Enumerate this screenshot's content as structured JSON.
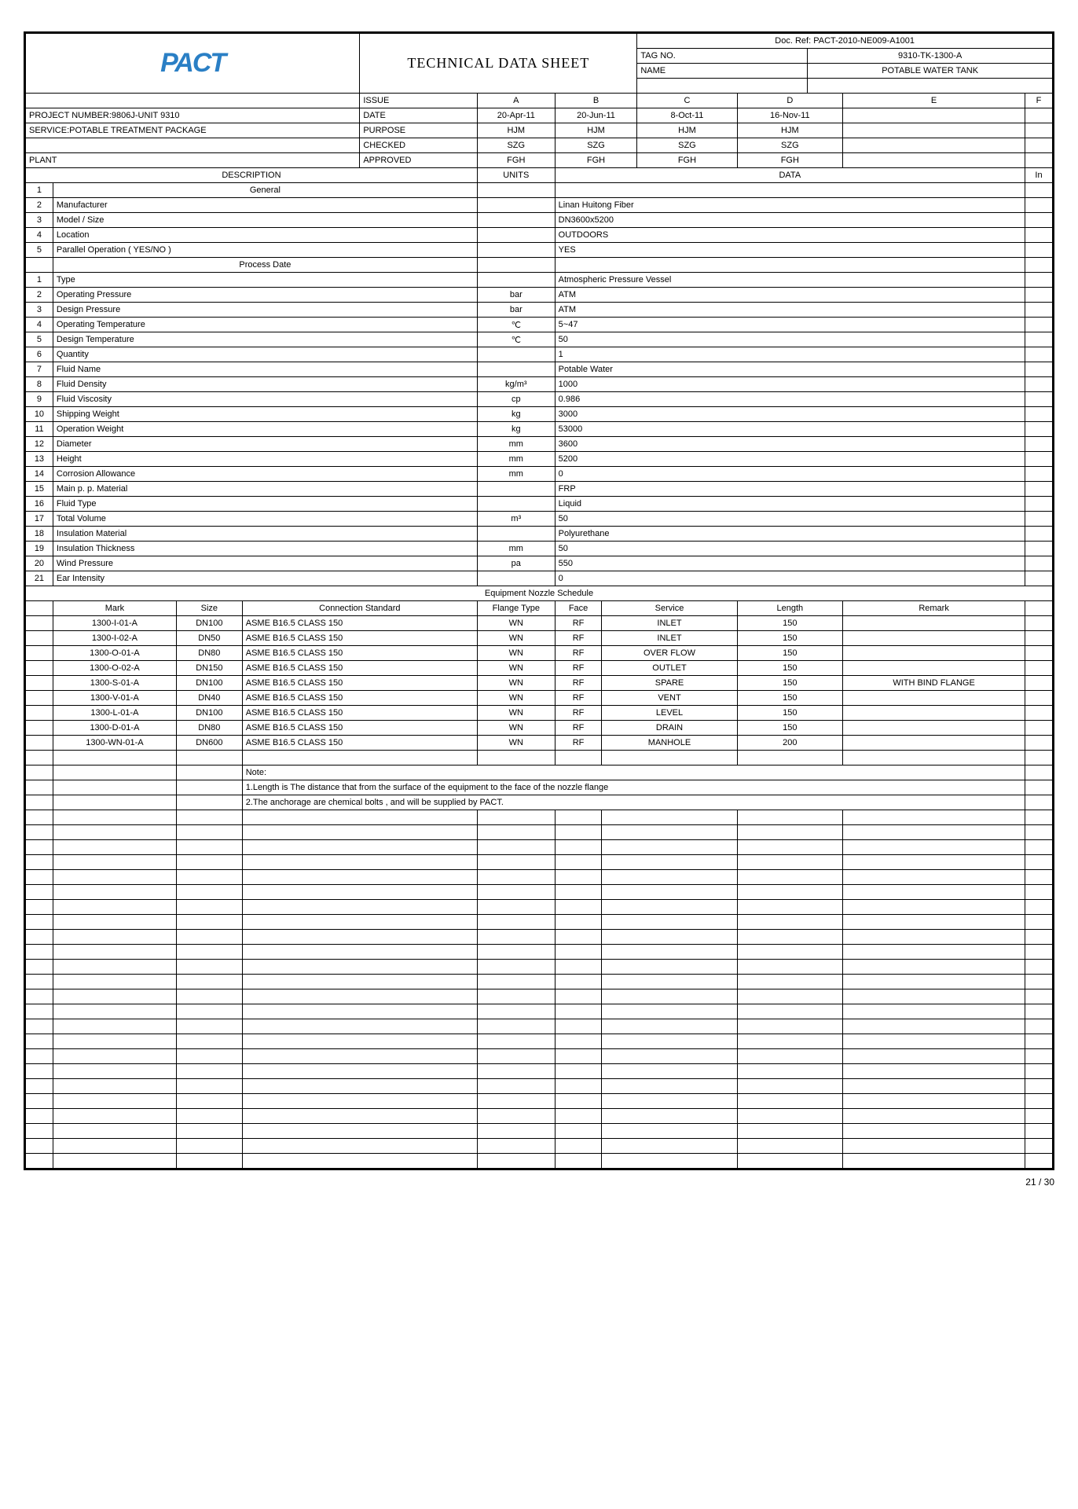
{
  "header": {
    "title": "TECHNICAL DATA SHEET",
    "docref_label": "Doc. Ref:",
    "docref": "PACT-2010-NE009-A1001",
    "tagno_label": "TAG NO.",
    "tagno": "9310-TK-1300-A",
    "name_label": "NAME",
    "name": "POTABLE WATER TANK",
    "project": "PROJECT NUMBER:9806J-UNIT 9310",
    "service": "SERVICE:POTABLE TREATMENT PACKAGE",
    "plant": "PLANT",
    "rev": {
      "issue": "ISSUE",
      "date": "DATE",
      "purpose": "PURPOSE",
      "checked": "CHECKED",
      "approved": "APPROVED",
      "cols": [
        "A",
        "B",
        "C",
        "D",
        "E",
        "F"
      ],
      "dates": [
        "20-Apr-11",
        "20-Jun-11",
        "8-Oct-11",
        "16-Nov-11",
        "",
        ""
      ],
      "purposes": [
        "HJM",
        "HJM",
        "HJM",
        "HJM",
        "",
        ""
      ],
      "checkeds": [
        "SZG",
        "SZG",
        "SZG",
        "SZG",
        "",
        ""
      ],
      "approveds": [
        "FGH",
        "FGH",
        "FGH",
        "FGH",
        "",
        ""
      ]
    },
    "desc_hdr": "DESCRIPTION",
    "units_hdr": "UNITS",
    "data_hdr": "DATA",
    "in_hdr": "In"
  },
  "general": {
    "title": "General",
    "rows": [
      {
        "n": "1",
        "d": "",
        "u": "",
        "v": ""
      },
      {
        "n": "2",
        "d": "Manufacturer",
        "u": "",
        "v": "Linan Huitong Fiber"
      },
      {
        "n": "3",
        "d": "Model / Size",
        "u": "",
        "v": "DN3600x5200"
      },
      {
        "n": "4",
        "d": "Location",
        "u": "",
        "v": "OUTDOORS"
      },
      {
        "n": "5",
        "d": "Parallel Operation ( YES/NO )",
        "u": "",
        "v": "YES"
      }
    ]
  },
  "process": {
    "title": "Process Date",
    "rows": [
      {
        "n": "1",
        "d": "Type",
        "u": "",
        "v": "Atmospheric Pressure Vessel"
      },
      {
        "n": "2",
        "d": "Operating Pressure",
        "u": "bar",
        "v": "ATM"
      },
      {
        "n": "3",
        "d": "Design Pressure",
        "u": "bar",
        "v": "ATM"
      },
      {
        "n": "4",
        "d": "Operating Temperature",
        "u": "℃",
        "v": "5~47"
      },
      {
        "n": "5",
        "d": "Design Temperature",
        "u": "℃",
        "v": "50"
      },
      {
        "n": "6",
        "d": "Quantity",
        "u": "",
        "v": "1"
      },
      {
        "n": "7",
        "d": "Fluid Name",
        "u": "",
        "v": "Potable Water"
      },
      {
        "n": "8",
        "d": "Fluid Density",
        "u": "kg/m³",
        "v": "1000"
      },
      {
        "n": "9",
        "d": "Fluid Viscosity",
        "u": "cp",
        "v": "0.986"
      },
      {
        "n": "10",
        "d": "Shipping Weight",
        "u": "kg",
        "v": "3000"
      },
      {
        "n": "11",
        "d": "Operation Weight",
        "u": "kg",
        "v": "53000"
      },
      {
        "n": "12",
        "d": "Diameter",
        "u": "mm",
        "v": "3600"
      },
      {
        "n": "13",
        "d": "Height",
        "u": "mm",
        "v": "5200"
      },
      {
        "n": "14",
        "d": "Corrosion Allowance",
        "u": "mm",
        "v": "0"
      },
      {
        "n": "15",
        "d": "Main p. p. Material",
        "u": "",
        "v": "FRP"
      },
      {
        "n": "16",
        "d": "Fluid Type",
        "u": "",
        "v": "Liquid"
      },
      {
        "n": "17",
        "d": "Total Volume",
        "u": "m³",
        "v": "50"
      },
      {
        "n": "18",
        "d": "Insulation Material",
        "u": "",
        "v": "Polyurethane"
      },
      {
        "n": "19",
        "d": "Insulation Thickness",
        "u": "mm",
        "v": "50"
      },
      {
        "n": "20",
        "d": "Wind Pressure",
        "u": "pa",
        "v": "550"
      },
      {
        "n": "21",
        "d": "Ear Intensity",
        "u": "",
        "v": "0"
      }
    ]
  },
  "nozzle": {
    "title": "Equipment Nozzle Schedule",
    "hdr": {
      "mark": "Mark",
      "size": "Size",
      "conn": "Connection Standard",
      "flange": "Flange Type",
      "face": "Face",
      "service": "Service",
      "length": "Length",
      "remark": "Remark"
    },
    "rows": [
      {
        "mark": "1300-I-01-A",
        "size": "DN100",
        "conn": "ASME B16.5 CLASS 150",
        "flange": "WN",
        "face": "RF",
        "service": "INLET",
        "length": "150",
        "remark": ""
      },
      {
        "mark": "1300-I-02-A",
        "size": "DN50",
        "conn": "ASME B16.5 CLASS 150",
        "flange": "WN",
        "face": "RF",
        "service": "INLET",
        "length": "150",
        "remark": ""
      },
      {
        "mark": "1300-O-01-A",
        "size": "DN80",
        "conn": "ASME B16.5 CLASS 150",
        "flange": "WN",
        "face": "RF",
        "service": "OVER FLOW",
        "length": "150",
        "remark": ""
      },
      {
        "mark": "1300-O-02-A",
        "size": "DN150",
        "conn": "ASME B16.5 CLASS 150",
        "flange": "WN",
        "face": "RF",
        "service": "OUTLET",
        "length": "150",
        "remark": ""
      },
      {
        "mark": "1300-S-01-A",
        "size": "DN100",
        "conn": "ASME B16.5 CLASS 150",
        "flange": "WN",
        "face": "RF",
        "service": "SPARE",
        "length": "150",
        "remark": "WITH BIND FLANGE"
      },
      {
        "mark": "1300-V-01-A",
        "size": "DN40",
        "conn": "ASME B16.5 CLASS 150",
        "flange": "WN",
        "face": "RF",
        "service": "VENT",
        "length": "150",
        "remark": ""
      },
      {
        "mark": "1300-L-01-A",
        "size": "DN100",
        "conn": "ASME B16.5 CLASS 150",
        "flange": "WN",
        "face": "RF",
        "service": "LEVEL",
        "length": "150",
        "remark": ""
      },
      {
        "mark": "1300-D-01-A",
        "size": "DN80",
        "conn": "ASME B16.5 CLASS 150",
        "flange": "WN",
        "face": "RF",
        "service": "DRAIN",
        "length": "150",
        "remark": ""
      },
      {
        "mark": "1300-WN-01-A",
        "size": "DN600",
        "conn": "ASME B16.5 CLASS 150",
        "flange": "WN",
        "face": "RF",
        "service": "MANHOLE",
        "length": "200",
        "remark": ""
      }
    ],
    "note_label": "Note:",
    "notes": [
      "1.Length is The distance that from the surface of the equipment to the face of the nozzle flange",
      "2.The anchorage are chemical bolts , and will be supplied by PACT."
    ]
  },
  "empty_rows": 24,
  "pageno": "21 / 30"
}
